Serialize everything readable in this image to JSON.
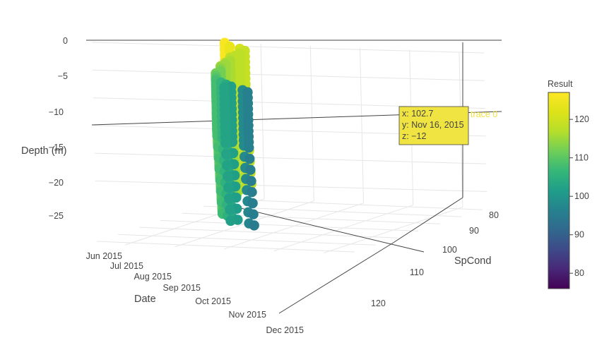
{
  "chart_data": {
    "type": "scatter3d",
    "trace_name": "trace 0",
    "axes": {
      "x": {
        "title": "SpCond",
        "ticks": [
          "80",
          "90",
          "100",
          "110",
          "120"
        ],
        "range": [
          75,
          127
        ]
      },
      "y": {
        "title": "Date",
        "ticks": [
          "Jun 2015",
          "Jul 2015",
          "Aug 2015",
          "Sep 2015",
          "Oct 2015",
          "Nov 2015",
          "Dec 2015"
        ],
        "range": [
          "2015-05-25",
          "2015-12-10"
        ]
      },
      "z": {
        "title": "Depth (m)",
        "ticks": [
          "0",
          "−5",
          "−10",
          "−15",
          "−20",
          "−25"
        ],
        "range": [
          -28,
          0
        ]
      }
    },
    "colorbar": {
      "title": "Result",
      "ticks": [
        "80",
        "90",
        "100",
        "110",
        "120"
      ],
      "range": [
        76,
        127
      ],
      "colorscale": "viridis"
    },
    "hover": {
      "x": "x: 102.7",
      "y": "y: Nov 16, 2015",
      "z": "z: −12",
      "label": "trace 0"
    },
    "sampling_dates": [
      "2015-05-27",
      "2015-06-03",
      "2015-06-10",
      "2015-06-17",
      "2015-06-24",
      "2015-07-01",
      "2015-07-08",
      "2015-07-15",
      "2015-07-22",
      "2015-07-29",
      "2015-08-05",
      "2015-08-12",
      "2015-08-19",
      "2015-08-26",
      "2015-09-02",
      "2015-09-09",
      "2015-09-16",
      "2015-09-23",
      "2015-09-30",
      "2015-10-07",
      "2015-10-14",
      "2015-10-21",
      "2015-10-28",
      "2015-11-04",
      "2015-11-11",
      "2015-11-16",
      "2015-11-23",
      "2015-11-30"
    ],
    "depths": [
      0,
      -1,
      -2,
      -3,
      -4,
      -5,
      -6,
      -7,
      -8,
      -9,
      -10,
      -12,
      -14,
      -16,
      -18,
      -20,
      -22,
      -24,
      -26
    ],
    "spcond_by_date": [
      127,
      126,
      124,
      121,
      119,
      119,
      118,
      118,
      118,
      117,
      116,
      116,
      115,
      115,
      114,
      113,
      112,
      112,
      111,
      110,
      109,
      108,
      106,
      104,
      102,
      102.7,
      98,
      96
    ],
    "max_depth_by_date": [
      -26,
      -26,
      -25,
      -24,
      -24,
      -24,
      -24,
      -24,
      -24,
      -24,
      -24,
      -24,
      -24,
      -24,
      -24,
      -24,
      -24,
      -24,
      -24,
      -24,
      -24,
      -24,
      -24,
      -24,
      -24,
      -24,
      -24,
      -24
    ]
  }
}
